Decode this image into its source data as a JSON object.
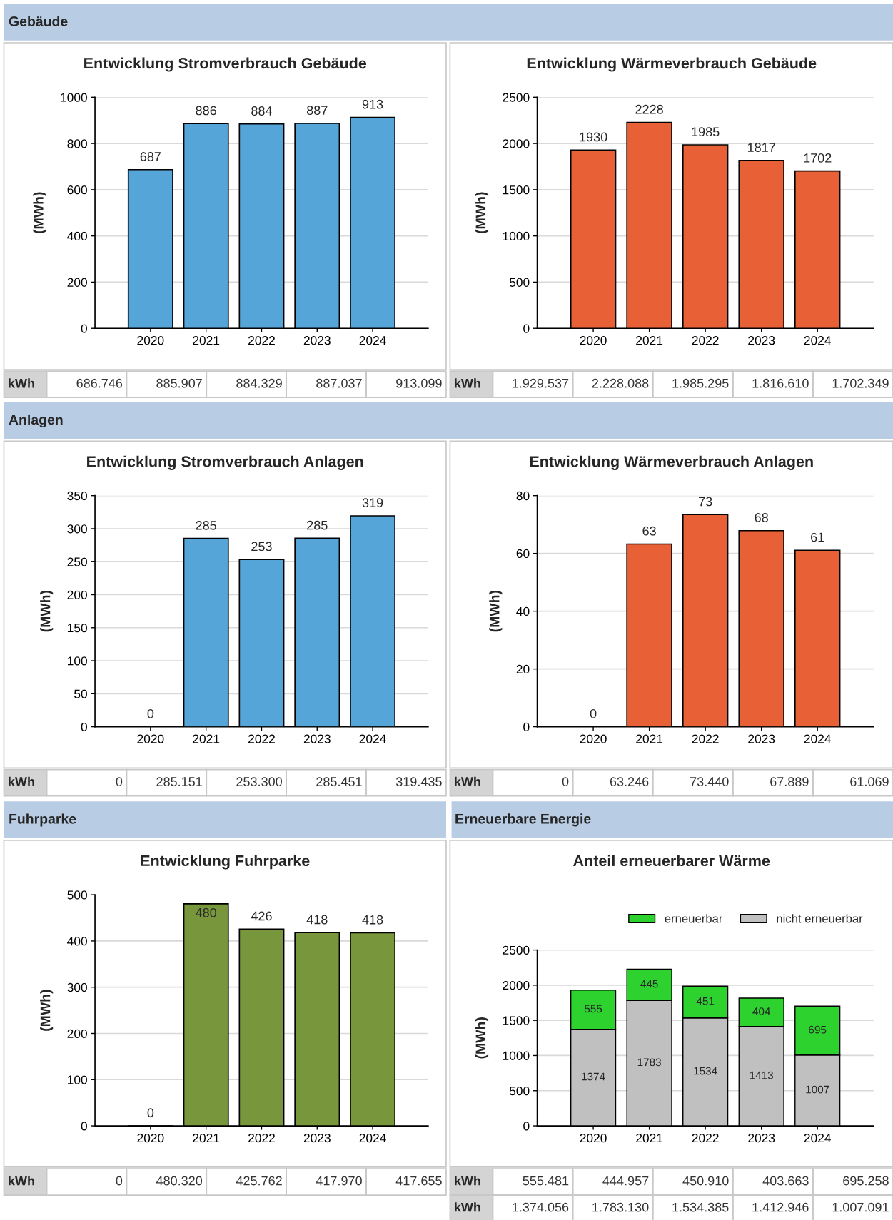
{
  "chart_data": [
    {
      "type": "bar",
      "subtitle": "Gebäude",
      "title": "Entwicklung Stromverbrauch Gebäude",
      "ylabel": "(MWh)",
      "categories": [
        "2020",
        "2021",
        "2022",
        "2023",
        "2024"
      ],
      "values": [
        686.746,
        885.907,
        884.329,
        887.037,
        913.099
      ],
      "value_labels": [
        "687",
        "886",
        "884",
        "887",
        "913"
      ],
      "color": "#56a5d8",
      "ylim": [
        0,
        1000
      ],
      "yticks": [
        0,
        200,
        400,
        600,
        800,
        1000
      ],
      "grid": "y",
      "annotations": [
        "kWh",
        "686.746",
        "885.907",
        "884.329",
        "887.037",
        "913.099"
      ]
    },
    {
      "type": "bar",
      "title": "Entwicklung Wärmeverbrauch Gebäude",
      "ylabel": "(MWh)",
      "categories": [
        "2020",
        "2021",
        "2022",
        "2023",
        "2024"
      ],
      "values": [
        1929.537,
        2228.088,
        1985.295,
        1816.61,
        1702.349
      ],
      "value_labels": [
        "1930",
        "2228",
        "1985",
        "1817",
        "1702"
      ],
      "color": "#e86036",
      "ylim": [
        0,
        2500
      ],
      "yticks": [
        0,
        500,
        1000,
        1500,
        2000,
        2500
      ],
      "grid": "y",
      "annotations": [
        "kWh",
        "1.929.537",
        "2.228.088",
        "1.985.295",
        "1.816.610",
        "1.702.349"
      ]
    },
    {
      "type": "bar",
      "subtitle": "Anlagen",
      "title": "Entwicklung Stromverbrauch Anlagen",
      "ylabel": "(MWh)",
      "categories": [
        "2020",
        "2021",
        "2022",
        "2023",
        "2024"
      ],
      "values": [
        0,
        285.151,
        253.3,
        285.451,
        319.435
      ],
      "value_labels": [
        "0",
        "285",
        "253",
        "285",
        "319"
      ],
      "color": "#56a5d8",
      "ylim": [
        0,
        350
      ],
      "yticks": [
        0,
        50,
        100,
        150,
        200,
        250,
        300,
        350
      ],
      "grid": "y",
      "annotations": [
        "kWh",
        "0",
        "285.151",
        "253.300",
        "285.451",
        "319.435"
      ]
    },
    {
      "type": "bar",
      "title": "Entwicklung Wärmeverbrauch Anlagen",
      "ylabel": "(MWh)",
      "categories": [
        "2020",
        "2021",
        "2022",
        "2023",
        "2024"
      ],
      "values": [
        0,
        63.246,
        73.44,
        67.889,
        61.069
      ],
      "value_labels": [
        "0",
        "63",
        "73",
        "68",
        "61"
      ],
      "color": "#e86036",
      "ylim": [
        0,
        80
      ],
      "yticks": [
        0,
        20,
        40,
        60,
        80
      ],
      "grid": "y",
      "annotations": [
        "kWh",
        "0",
        "63.246",
        "73.440",
        "67.889",
        "61.069"
      ]
    },
    {
      "type": "bar",
      "subtitle": "Fuhrparke",
      "title": "Entwicklung Fuhrparke",
      "ylabel": "(MWh)",
      "categories": [
        "2020",
        "2021",
        "2022",
        "2023",
        "2024"
      ],
      "values": [
        0,
        480.32,
        425.762,
        417.97,
        417.655
      ],
      "value_labels": [
        "0",
        "480",
        "426",
        "418",
        "418"
      ],
      "color": "#78963c",
      "ylim": [
        0,
        500
      ],
      "yticks": [
        0,
        100,
        200,
        300,
        400,
        500
      ],
      "grid": "y",
      "annotations": [
        "kWh",
        "0",
        "480.320",
        "425.762",
        "417.970",
        "417.655"
      ]
    },
    {
      "type": "bar",
      "subtitle": "Erneuerbare Energie",
      "title": "Anteil erneuerbarer Wärme",
      "ylabel": "(MWh)",
      "categories": [
        "2020",
        "2021",
        "2022",
        "2023",
        "2024"
      ],
      "stacked": true,
      "legend": "top right",
      "ylim": [
        0,
        2500
      ],
      "yticks": [
        0,
        500,
        1000,
        1500,
        2000,
        2500
      ],
      "grid": "y",
      "series": [
        {
          "name": "nicht erneuerbar",
          "color": "#c0c0c0",
          "values": [
            1374.056,
            1783.13,
            1534.385,
            1412.946,
            1007.091
          ],
          "value_labels": [
            "1374",
            "1783",
            "1534",
            "1413",
            "1007"
          ]
        },
        {
          "name": "erneuerbar",
          "color": "#2ed22e",
          "values": [
            555.481,
            444.957,
            450.91,
            403.663,
            695.258
          ],
          "value_labels": [
            "555",
            "445",
            "451",
            "404",
            "695"
          ]
        }
      ],
      "annotations": [
        "kWh",
        "555.481",
        "444.957",
        "450.910",
        "403.663",
        "695.258",
        "kWh",
        "1.374.056",
        "1.783.130",
        "1.534.385",
        "1.412.946",
        "1.007.091"
      ]
    }
  ]
}
